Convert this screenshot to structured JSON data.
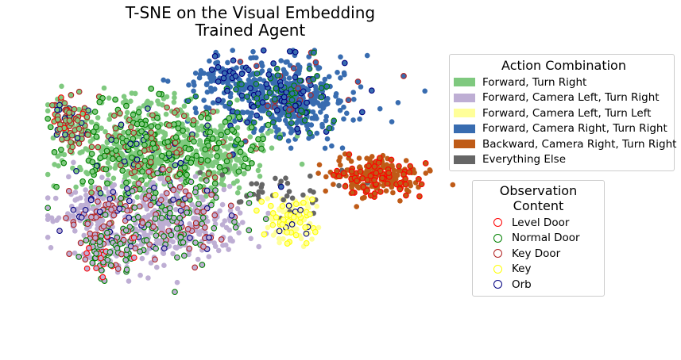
{
  "chart_data": {
    "type": "scatter",
    "title": "T-SNE on the Visual Embedding\nTrained Agent",
    "title_lines": [
      "T-SNE on the Visual Embedding",
      "Trained Agent"
    ],
    "xlabel": "",
    "ylabel": "",
    "axes_visible": false,
    "grid": false,
    "xlim": [
      0,
      100
    ],
    "ylim": [
      0,
      100
    ],
    "action_legend": {
      "title": "Action Combination",
      "placement": "upper-right",
      "entries": [
        {
          "name": "Forward, Turn Right",
          "color": "#7fc97f"
        },
        {
          "name": "Forward, Camera Left, Turn Right",
          "color": "#beaed4"
        },
        {
          "name": "Forward, Camera Left, Turn Left",
          "color": "#ffff99"
        },
        {
          "name": "Forward, Camera Right, Turn Right",
          "color": "#386cb0"
        },
        {
          "name": "Backward, Camera Right, Turn Right",
          "color": "#bf5b17"
        },
        {
          "name": "Everything Else",
          "color": "#666666"
        }
      ]
    },
    "observation_legend": {
      "title": "Observation Content",
      "placement": "right",
      "entries": [
        {
          "name": "Level Door",
          "color": "#ff0000"
        },
        {
          "name": "Normal Door",
          "color": "#008000"
        },
        {
          "name": "Key Door",
          "color": "#b22222"
        },
        {
          "name": "Key",
          "color": "#ffff00"
        },
        {
          "name": "Orb",
          "color": "#000080"
        }
      ]
    },
    "clusters": [
      {
        "series": "Forward, Camera Right, Turn Right",
        "center": [
          58,
          82
        ],
        "spread": [
          11,
          9
        ],
        "count": 520,
        "outlined": [
          [
            "Orb",
            0.1
          ],
          [
            "Normal Door",
            0.1
          ],
          [
            "Key Door",
            0.04
          ]
        ]
      },
      {
        "series": "Forward, Camera Right, Turn Right",
        "center": [
          43,
          90
        ],
        "spread": [
          4,
          3
        ],
        "count": 60,
        "outlined": [
          [
            "Orb",
            0.25
          ]
        ]
      },
      {
        "series": "Forward, Turn Right",
        "center": [
          25,
          65
        ],
        "spread": [
          13,
          11
        ],
        "count": 700,
        "outlined": [
          [
            "Normal Door",
            0.22
          ],
          [
            "Key Door",
            0.12
          ],
          [
            "Orb",
            0.04
          ]
        ]
      },
      {
        "series": "Forward, Turn Right",
        "center": [
          45,
          63
        ],
        "spread": [
          6,
          7
        ],
        "count": 160,
        "outlined": [
          [
            "Normal Door",
            0.15
          ]
        ]
      },
      {
        "series": "Forward, Camera Left, Turn Right",
        "center": [
          28,
          38
        ],
        "spread": [
          12,
          9
        ],
        "count": 520,
        "outlined": [
          [
            "Normal Door",
            0.18
          ],
          [
            "Key Door",
            0.12
          ],
          [
            "Orb",
            0.06
          ]
        ]
      },
      {
        "series": "Forward, Camera Left, Turn Right",
        "center": [
          12,
          42
        ],
        "spread": [
          6,
          6
        ],
        "count": 120,
        "outlined": [
          [
            "Key Door",
            0.2
          ],
          [
            "Orb",
            0.08
          ]
        ]
      },
      {
        "series": "Forward, Camera Left, Turn Left",
        "center": [
          60,
          40
        ],
        "spread": [
          3.5,
          5
        ],
        "count": 110,
        "outlined": [
          [
            "Key",
            0.35
          ],
          [
            "Orb",
            0.08
          ]
        ]
      },
      {
        "series": "Backward, Camera Right, Turn Right",
        "center": [
          80,
          55
        ],
        "spread": [
          7,
          4
        ],
        "count": 240,
        "outlined": [
          [
            "Level Door",
            0.25
          ]
        ]
      },
      {
        "series": "Everything Else",
        "center": [
          57,
          50
        ],
        "spread": [
          10,
          5
        ],
        "count": 40,
        "outlined": []
      },
      {
        "series": "Forward, Turn Right",
        "center": [
          6,
          74
        ],
        "spread": [
          3,
          5
        ],
        "count": 80,
        "outlined": [
          [
            "Key Door",
            0.45
          ],
          [
            "Orb",
            0.2
          ],
          [
            "Level Door",
            0.1
          ]
        ]
      },
      {
        "series": "Forward, Camera Left, Turn Right",
        "center": [
          15,
          28
        ],
        "spread": [
          4,
          4
        ],
        "count": 90,
        "outlined": [
          [
            "Level Door",
            0.25
          ],
          [
            "Normal Door",
            0.25
          ],
          [
            "Key Door",
            0.15
          ]
        ]
      }
    ],
    "random_seed": 7
  }
}
